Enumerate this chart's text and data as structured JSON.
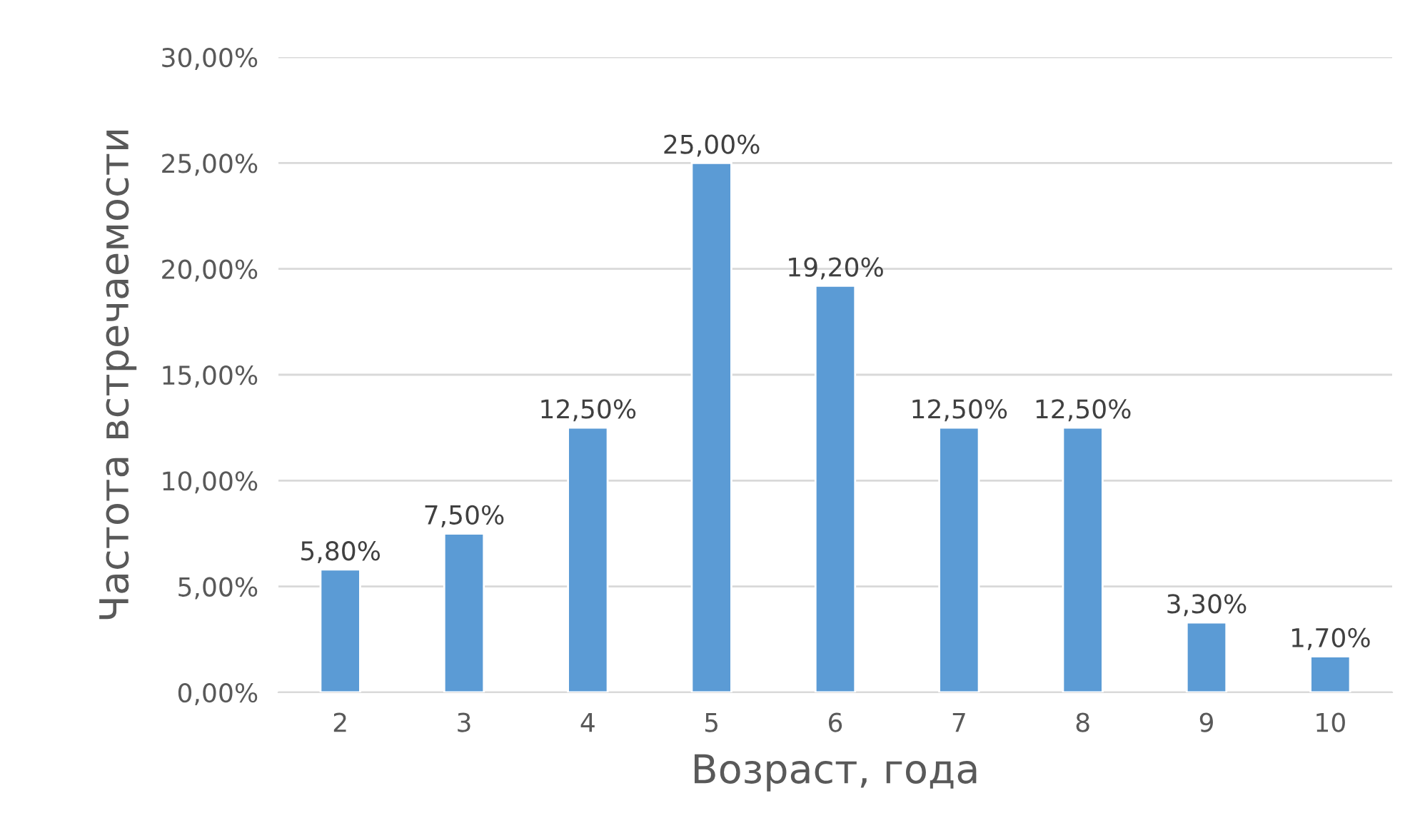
{
  "chart_data": {
    "type": "bar",
    "xlabel": "Возраст, года",
    "ylabel": "Частота встречаемости",
    "categories": [
      "2",
      "3",
      "4",
      "5",
      "6",
      "7",
      "8",
      "9",
      "10"
    ],
    "values": [
      5.8,
      7.5,
      12.5,
      25.0,
      19.2,
      12.5,
      12.5,
      3.3,
      1.7
    ],
    "value_labels": [
      "5,80%",
      "7,50%",
      "12,50%",
      "25,00%",
      "19,20%",
      "12,50%",
      "12,50%",
      "3,30%",
      "1,70%"
    ],
    "color": "#5b9bd5",
    "ylim": [
      0,
      30
    ],
    "yticks": [
      {
        "value": 0,
        "label": "0,00%"
      },
      {
        "value": 5,
        "label": "5,00%"
      },
      {
        "value": 10,
        "label": "10,00%"
      },
      {
        "value": 15,
        "label": "15,00%"
      },
      {
        "value": 20,
        "label": "20,00%"
      },
      {
        "value": 25,
        "label": "25,00%"
      },
      {
        "value": 30,
        "label": "30,00%"
      }
    ],
    "grid": "y",
    "legend": false
  }
}
